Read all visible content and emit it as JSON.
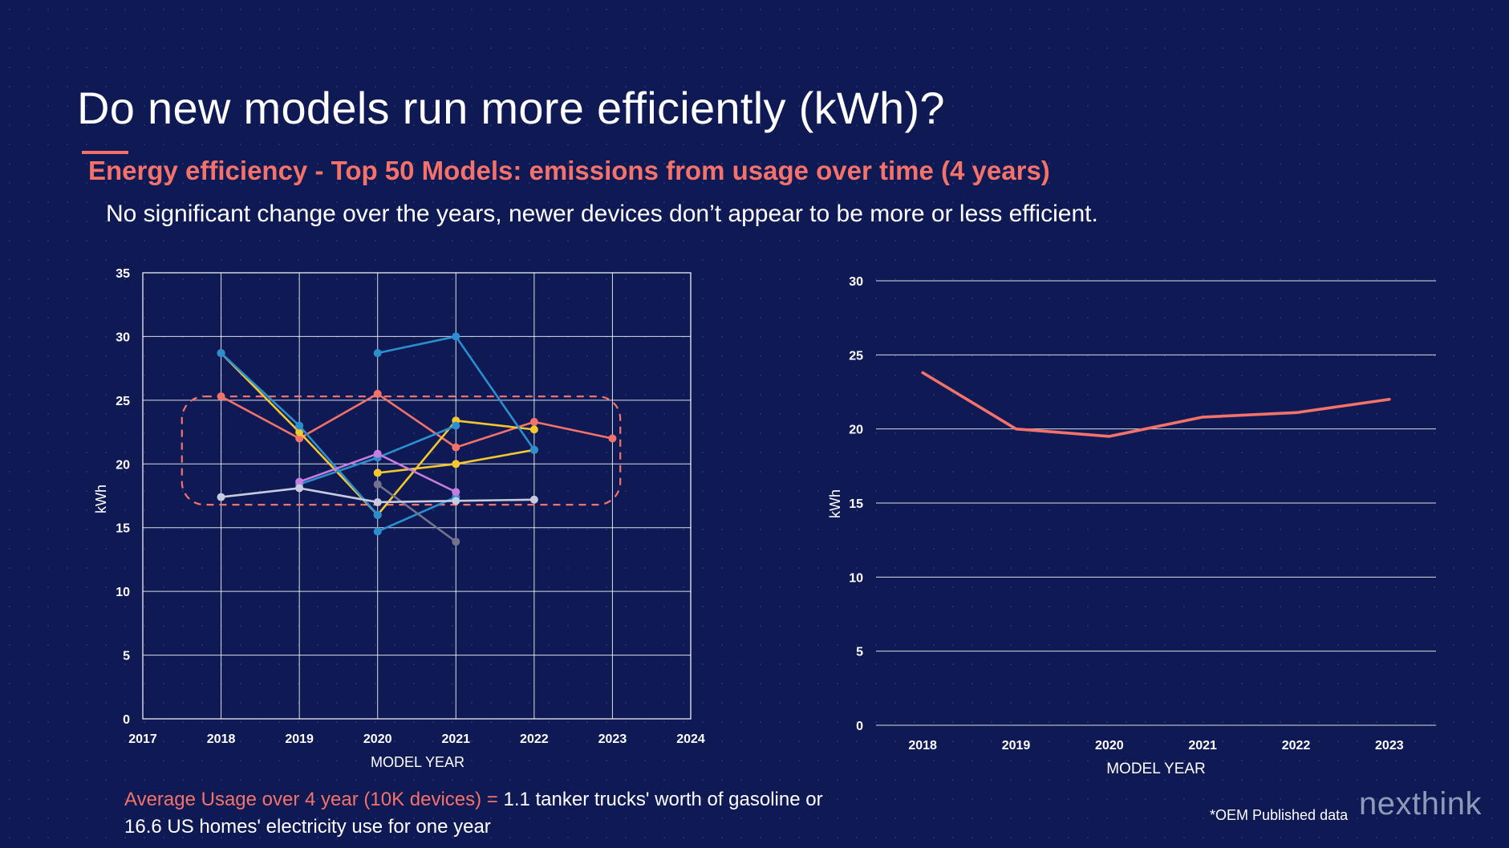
{
  "slide": {
    "title": "Do new models run more efficiently (kWh)?",
    "subtitle": "Energy efficiency - Top 50 Models: emissions from usage over time (4 years)",
    "description": "No significant change over the years, newer devices don’t appear to be more or less efficient.",
    "footer_highlight": "Average Usage over 4 year (10K devices) =",
    "footer_line1": " 1.1 tanker trucks' worth of gasoline or",
    "footer_line2": "16.6 US homes' electricity use for one year",
    "source_note": "*OEM Published data",
    "logo": "nexthink"
  },
  "colors": {
    "background": "#0f1a55",
    "accent": "#f4726a",
    "gridline": "#ffffff"
  },
  "chart_data": [
    {
      "type": "line",
      "xlabel": "MODEL YEAR",
      "ylabel": "kWh",
      "xlim": [
        2017,
        2024
      ],
      "ylim": [
        0,
        35
      ],
      "xticks": [
        2017,
        2018,
        2019,
        2020,
        2021,
        2022,
        2023,
        2024
      ],
      "yticks": [
        0,
        5,
        10,
        15,
        20,
        25,
        30,
        35
      ],
      "grid": true,
      "highlight_box": {
        "x": [
          2017.5,
          2023.1
        ],
        "y": [
          16.8,
          25.3
        ],
        "color": "#f4726a",
        "style": "dashed"
      },
      "series": [
        {
          "color": "#f4726a",
          "points": [
            [
              2018,
              25.3
            ],
            [
              2019,
              22.0
            ],
            [
              2020,
              25.5
            ],
            [
              2021,
              21.3
            ],
            [
              2022,
              23.3
            ],
            [
              2023,
              22.0
            ]
          ]
        },
        {
          "color": "#f2c82e",
          "points": [
            [
              2018,
              28.7
            ],
            [
              2019,
              22.5
            ],
            [
              2020,
              16.0
            ],
            [
              2021,
              23.4
            ],
            [
              2022,
              22.7
            ]
          ]
        },
        {
          "color": "#f2c82e",
          "points": [
            [
              2020,
              19.3
            ],
            [
              2021,
              20.0
            ],
            [
              2022,
              21.1
            ]
          ]
        },
        {
          "color": "#2b8fcf",
          "points": [
            [
              2018,
              28.7
            ],
            [
              2019,
              23.0
            ],
            [
              2020,
              16.0
            ]
          ]
        },
        {
          "color": "#2b8fcf",
          "points": [
            [
              2020,
              28.7
            ],
            [
              2021,
              30.0
            ],
            [
              2022,
              21.1
            ]
          ]
        },
        {
          "color": "#2b8fcf",
          "points": [
            [
              2020,
              14.7
            ],
            [
              2021,
              17.4
            ]
          ]
        },
        {
          "color": "#2b8fcf",
          "points": [
            [
              2019,
              18.4
            ],
            [
              2020,
              20.5
            ],
            [
              2021,
              23.0
            ]
          ]
        },
        {
          "color": "#c77de0",
          "points": [
            [
              2019,
              18.6
            ],
            [
              2020,
              20.8
            ],
            [
              2021,
              17.8
            ]
          ]
        },
        {
          "color": "#73738f",
          "points": [
            [
              2020,
              18.4
            ],
            [
              2021,
              13.9
            ]
          ]
        },
        {
          "color": "#c6cbe0",
          "points": [
            [
              2018,
              17.4
            ],
            [
              2019,
              18.1
            ],
            [
              2020,
              17.0
            ],
            [
              2021,
              17.1
            ],
            [
              2022,
              17.2
            ]
          ]
        }
      ]
    },
    {
      "type": "line",
      "xlabel": "MODEL YEAR",
      "ylabel": "kWh",
      "ylim": [
        0,
        30
      ],
      "yticks": [
        0,
        5,
        10,
        15,
        20,
        25,
        30
      ],
      "categories": [
        "2018",
        "2019",
        "2020",
        "2021",
        "2022",
        "2023"
      ],
      "grid": "horizontal",
      "series": [
        {
          "color": "#f4726a",
          "values": [
            23.8,
            20.0,
            19.5,
            20.8,
            21.1,
            22.0
          ]
        }
      ]
    }
  ]
}
